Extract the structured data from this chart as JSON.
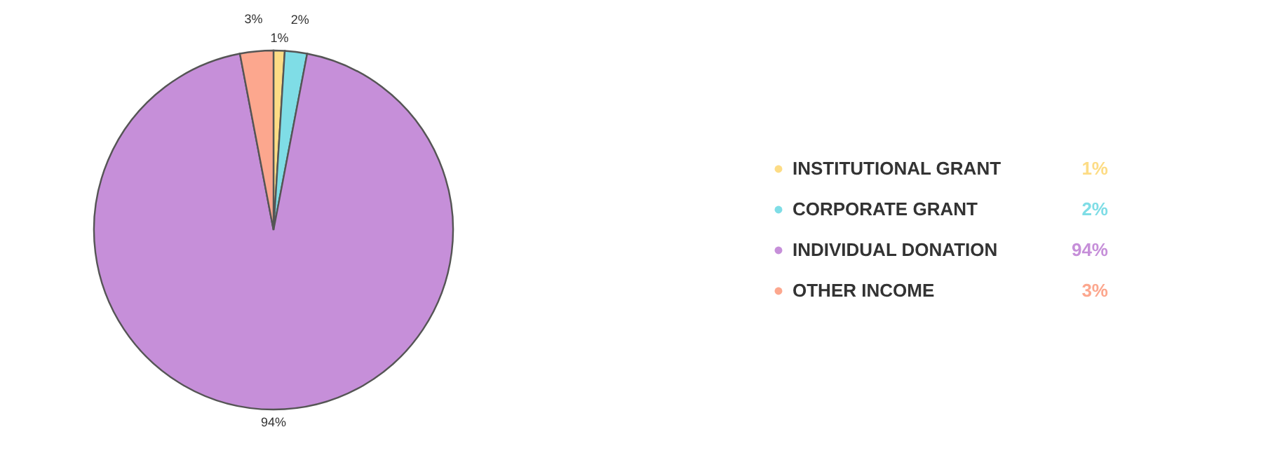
{
  "chart_data": {
    "type": "pie",
    "categories": [
      "INSTITUTIONAL GRANT",
      "CORPORATE GRANT",
      "INDIVIDUAL DONATION",
      "OTHER INCOME"
    ],
    "values": [
      1,
      2,
      94,
      3
    ],
    "colors": [
      "#fddc85",
      "#7fdde6",
      "#c68fd9",
      "#fca78e"
    ],
    "value_labels": [
      "1%",
      "2%",
      "94%",
      "3%"
    ],
    "legend": "right"
  }
}
